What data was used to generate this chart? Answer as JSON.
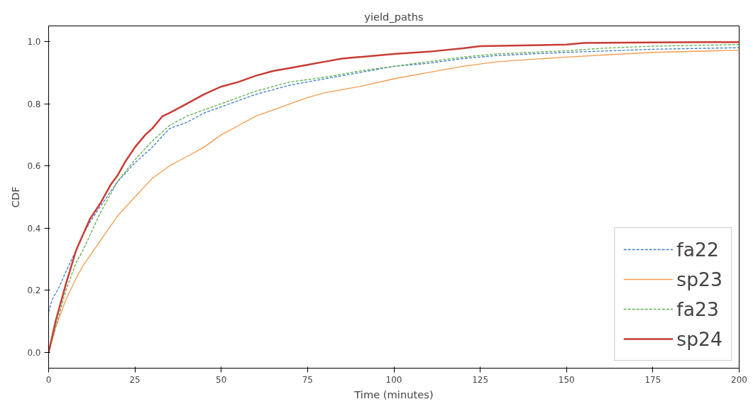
{
  "chart_data": {
    "type": "line",
    "title": "yield_paths",
    "xlabel": "Time (minutes)",
    "ylabel": "CDF",
    "xlim": [
      0,
      200
    ],
    "xticks": [
      0,
      25,
      50,
      75,
      100,
      125,
      150,
      175,
      200
    ],
    "ylim": [
      -0.05,
      1.05
    ],
    "yticks": [
      {
        "value": 0,
        "label": "0.0"
      },
      {
        "value": 0.2,
        "label": "0.2"
      },
      {
        "value": 0.4,
        "label": "0.4"
      },
      {
        "value": 0.6,
        "label": "0.6"
      },
      {
        "value": 0.8,
        "label": "0.8"
      },
      {
        "value": 1,
        "label": "1.0"
      }
    ],
    "grid": false,
    "legend": "bottom right",
    "marker": "none",
    "series": [
      {
        "name": "fa22",
        "color": "#3d7cc4",
        "line_style": "dashed",
        "x": [
          0,
          1,
          3,
          5,
          8,
          10,
          12,
          15,
          20,
          25,
          30,
          35,
          40,
          45,
          50,
          55,
          60,
          70,
          80,
          90,
          100,
          110,
          120,
          130,
          150,
          175,
          200
        ],
        "values": [
          0.13,
          0.17,
          0.21,
          0.26,
          0.33,
          0.38,
          0.42,
          0.47,
          0.55,
          0.61,
          0.66,
          0.72,
          0.74,
          0.77,
          0.79,
          0.81,
          0.83,
          0.86,
          0.88,
          0.9,
          0.92,
          0.93,
          0.945,
          0.955,
          0.965,
          0.975,
          0.98
        ]
      },
      {
        "name": "sp23",
        "color": "#f59b4c",
        "line_style": "solid",
        "x": [
          0,
          2,
          5,
          8,
          10,
          15,
          20,
          25,
          30,
          35,
          40,
          45,
          50,
          55,
          60,
          65,
          70,
          75,
          80,
          90,
          100,
          110,
          120,
          130,
          150,
          175,
          200
        ],
        "values": [
          0,
          0.08,
          0.17,
          0.24,
          0.28,
          0.36,
          0.44,
          0.5,
          0.56,
          0.6,
          0.63,
          0.66,
          0.7,
          0.73,
          0.76,
          0.78,
          0.8,
          0.82,
          0.835,
          0.855,
          0.88,
          0.9,
          0.92,
          0.935,
          0.95,
          0.965,
          0.972
        ]
      },
      {
        "name": "fa23",
        "color": "#5cae4c",
        "line_style": "dashed",
        "x": [
          0,
          2,
          5,
          8,
          10,
          15,
          20,
          25,
          30,
          35,
          40,
          45,
          50,
          55,
          60,
          70,
          80,
          90,
          100,
          110,
          120,
          130,
          150,
          160,
          175,
          200
        ],
        "values": [
          0,
          0.08,
          0.2,
          0.29,
          0.33,
          0.45,
          0.55,
          0.62,
          0.68,
          0.73,
          0.76,
          0.78,
          0.8,
          0.82,
          0.84,
          0.87,
          0.885,
          0.905,
          0.92,
          0.935,
          0.95,
          0.96,
          0.97,
          0.978,
          0.985,
          0.99
        ]
      },
      {
        "name": "sp24",
        "color": "#c83c34",
        "line_style": "solid",
        "x": [
          0,
          2,
          5,
          8,
          10,
          12,
          15,
          18,
          20,
          22,
          25,
          28,
          30,
          33,
          35,
          40,
          45,
          50,
          55,
          60,
          65,
          70,
          75,
          80,
          85,
          90,
          100,
          110,
          120,
          125,
          150,
          155,
          175,
          200
        ],
        "values": [
          0,
          0.1,
          0.22,
          0.33,
          0.38,
          0.43,
          0.48,
          0.54,
          0.57,
          0.61,
          0.66,
          0.7,
          0.72,
          0.76,
          0.77,
          0.8,
          0.83,
          0.855,
          0.87,
          0.89,
          0.905,
          0.915,
          0.925,
          0.935,
          0.945,
          0.95,
          0.96,
          0.967,
          0.978,
          0.985,
          0.99,
          0.995,
          0.997,
          0.998
        ]
      }
    ]
  }
}
